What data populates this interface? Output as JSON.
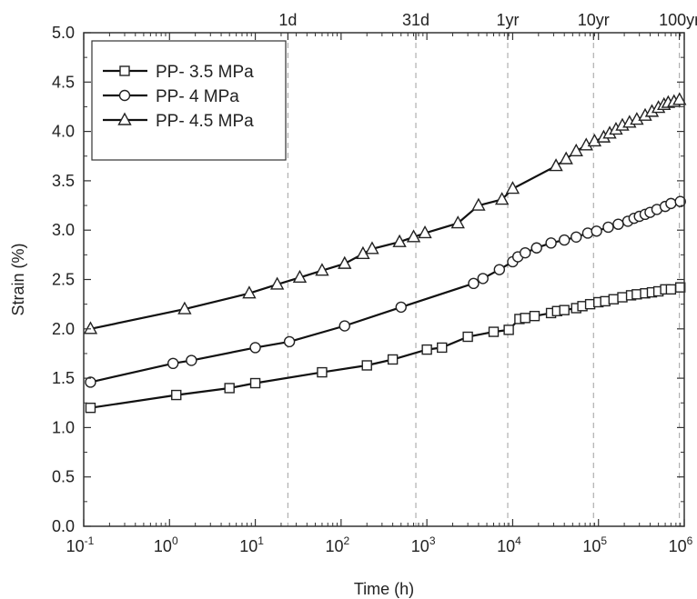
{
  "chart_data": {
    "type": "line",
    "title": "",
    "xlabel": "Time (h)",
    "ylabel": "Strain (%)",
    "x_scale": "log",
    "xlim": [
      0.1,
      1000000
    ],
    "ylim": [
      0.0,
      5.0
    ],
    "x_ticks": [
      {
        "value": 0.1,
        "base": "10",
        "exp": "-1"
      },
      {
        "value": 1,
        "base": "10",
        "exp": "0"
      },
      {
        "value": 10,
        "base": "10",
        "exp": "1"
      },
      {
        "value": 100,
        "base": "10",
        "exp": "2"
      },
      {
        "value": 1000,
        "base": "10",
        "exp": "3"
      },
      {
        "value": 10000,
        "base": "10",
        "exp": "4"
      },
      {
        "value": 100000,
        "base": "10",
        "exp": "5"
      },
      {
        "value": 1000000,
        "base": "10",
        "exp": "6"
      }
    ],
    "y_ticks": [
      "0.0",
      "0.5",
      "1.0",
      "1.5",
      "2.0",
      "2.5",
      "3.0",
      "3.5",
      "4.0",
      "4.5",
      "5.0"
    ],
    "top_axis": [
      {
        "label": "1d",
        "hours": 24
      },
      {
        "label": "31d",
        "hours": 744
      },
      {
        "label": "1yr",
        "hours": 8760
      },
      {
        "label": "10yr",
        "hours": 87600
      },
      {
        "label": "100yr",
        "hours": 876000
      }
    ],
    "legend_position": "top-left",
    "series": [
      {
        "name": "PP- 3.5 MPa",
        "marker": "square",
        "points": [
          [
            0.12,
            1.2
          ],
          [
            1.2,
            1.33
          ],
          [
            5,
            1.4
          ],
          [
            10,
            1.45
          ],
          [
            60,
            1.56
          ],
          [
            200,
            1.63
          ],
          [
            400,
            1.69
          ],
          [
            1000,
            1.79
          ],
          [
            1500,
            1.81
          ],
          [
            3000,
            1.92
          ],
          [
            6000,
            1.97
          ],
          [
            9000,
            1.99
          ],
          [
            12000,
            2.1
          ],
          [
            14000,
            2.11
          ],
          [
            18000,
            2.13
          ],
          [
            28000,
            2.16
          ],
          [
            33000,
            2.18
          ],
          [
            40000,
            2.19
          ],
          [
            55000,
            2.21
          ],
          [
            65000,
            2.23
          ],
          [
            80000,
            2.25
          ],
          [
            100000,
            2.27
          ],
          [
            120000,
            2.28
          ],
          [
            150000,
            2.3
          ],
          [
            190000,
            2.32
          ],
          [
            240000,
            2.34
          ],
          [
            280000,
            2.35
          ],
          [
            350000,
            2.36
          ],
          [
            420000,
            2.37
          ],
          [
            500000,
            2.38
          ],
          [
            600000,
            2.4
          ],
          [
            700000,
            2.4
          ],
          [
            900000,
            2.42
          ]
        ]
      },
      {
        "name": "PP- 4 MPa",
        "marker": "circle",
        "points": [
          [
            0.12,
            1.46
          ],
          [
            1.1,
            1.65
          ],
          [
            1.8,
            1.68
          ],
          [
            10,
            1.81
          ],
          [
            25,
            1.87
          ],
          [
            110,
            2.03
          ],
          [
            500,
            2.22
          ],
          [
            3500,
            2.46
          ],
          [
            4500,
            2.51
          ],
          [
            7000,
            2.6
          ],
          [
            10000,
            2.68
          ],
          [
            11500,
            2.73
          ],
          [
            14000,
            2.77
          ],
          [
            19000,
            2.82
          ],
          [
            28000,
            2.87
          ],
          [
            40000,
            2.9
          ],
          [
            55000,
            2.93
          ],
          [
            75000,
            2.97
          ],
          [
            95000,
            2.99
          ],
          [
            130000,
            3.03
          ],
          [
            170000,
            3.06
          ],
          [
            220000,
            3.09
          ],
          [
            260000,
            3.12
          ],
          [
            300000,
            3.14
          ],
          [
            350000,
            3.16
          ],
          [
            400000,
            3.18
          ],
          [
            480000,
            3.21
          ],
          [
            600000,
            3.24
          ],
          [
            700000,
            3.27
          ],
          [
            900000,
            3.29
          ]
        ]
      },
      {
        "name": "PP- 4.5 MPa",
        "marker": "triangle",
        "points": [
          [
            0.12,
            2.0
          ],
          [
            1.5,
            2.2
          ],
          [
            8.5,
            2.36
          ],
          [
            18,
            2.45
          ],
          [
            33,
            2.52
          ],
          [
            60,
            2.59
          ],
          [
            110,
            2.66
          ],
          [
            180,
            2.76
          ],
          [
            230,
            2.81
          ],
          [
            480,
            2.88
          ],
          [
            700,
            2.93
          ],
          [
            950,
            2.97
          ],
          [
            2300,
            3.07
          ],
          [
            4000,
            3.25
          ],
          [
            7500,
            3.31
          ],
          [
            10000,
            3.42
          ],
          [
            32000,
            3.65
          ],
          [
            42000,
            3.72
          ],
          [
            55000,
            3.8
          ],
          [
            72000,
            3.86
          ],
          [
            90000,
            3.9
          ],
          [
            115000,
            3.94
          ],
          [
            135000,
            3.98
          ],
          [
            160000,
            4.02
          ],
          [
            190000,
            4.06
          ],
          [
            230000,
            4.09
          ],
          [
            280000,
            4.12
          ],
          [
            350000,
            4.16
          ],
          [
            420000,
            4.2
          ],
          [
            500000,
            4.24
          ],
          [
            580000,
            4.27
          ],
          [
            650000,
            4.29
          ],
          [
            760000,
            4.3
          ],
          [
            880000,
            4.32
          ]
        ]
      }
    ]
  }
}
